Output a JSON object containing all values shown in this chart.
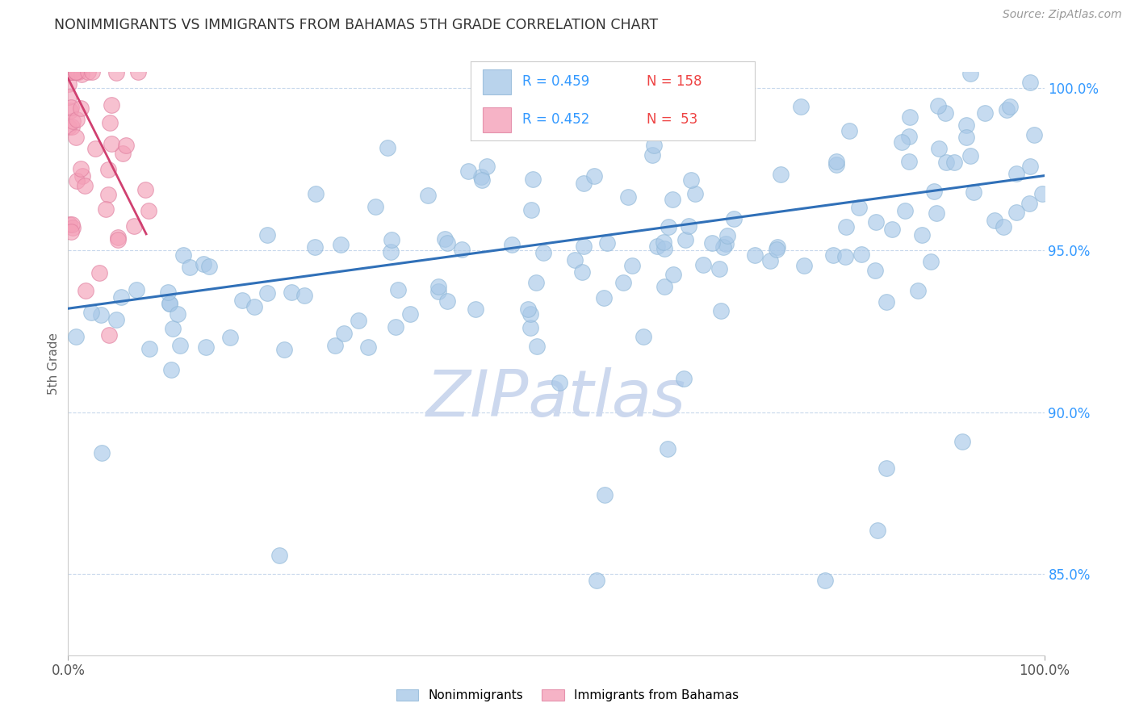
{
  "title": "NONIMMIGRANTS VS IMMIGRANTS FROM BAHAMAS 5TH GRADE CORRELATION CHART",
  "source_text": "Source: ZipAtlas.com",
  "ylabel": "5th Grade",
  "xlim": [
    0.0,
    1.0
  ],
  "ylim": [
    0.825,
    1.005
  ],
  "yticks": [
    0.85,
    0.9,
    0.95,
    1.0
  ],
  "ytick_labels": [
    "85.0%",
    "90.0%",
    "95.0%",
    "100.0%"
  ],
  "xtick_labels": [
    "0.0%",
    "100.0%"
  ],
  "legend_r1": "R = 0.459",
  "legend_n1": "N = 158",
  "legend_r2": "R = 0.452",
  "legend_n2": "N =  53",
  "blue_color": "#a8c8e8",
  "pink_color": "#f4a0b8",
  "trend_blue": "#3070b8",
  "trend_pink": "#d04070",
  "watermark": "ZIPatlas",
  "watermark_color": "#ccd8ee",
  "background": "#ffffff",
  "grid_color": "#c8d8ec",
  "legend_text_color": "#3399ff",
  "title_color": "#333333",
  "source_color": "#999999",
  "ylabel_color": "#666666",
  "blue_trend_x": [
    0.0,
    1.0
  ],
  "blue_trend_y": [
    0.932,
    0.973
  ],
  "pink_trend_x": [
    0.0,
    0.08
  ],
  "pink_trend_y": [
    1.003,
    0.955
  ]
}
